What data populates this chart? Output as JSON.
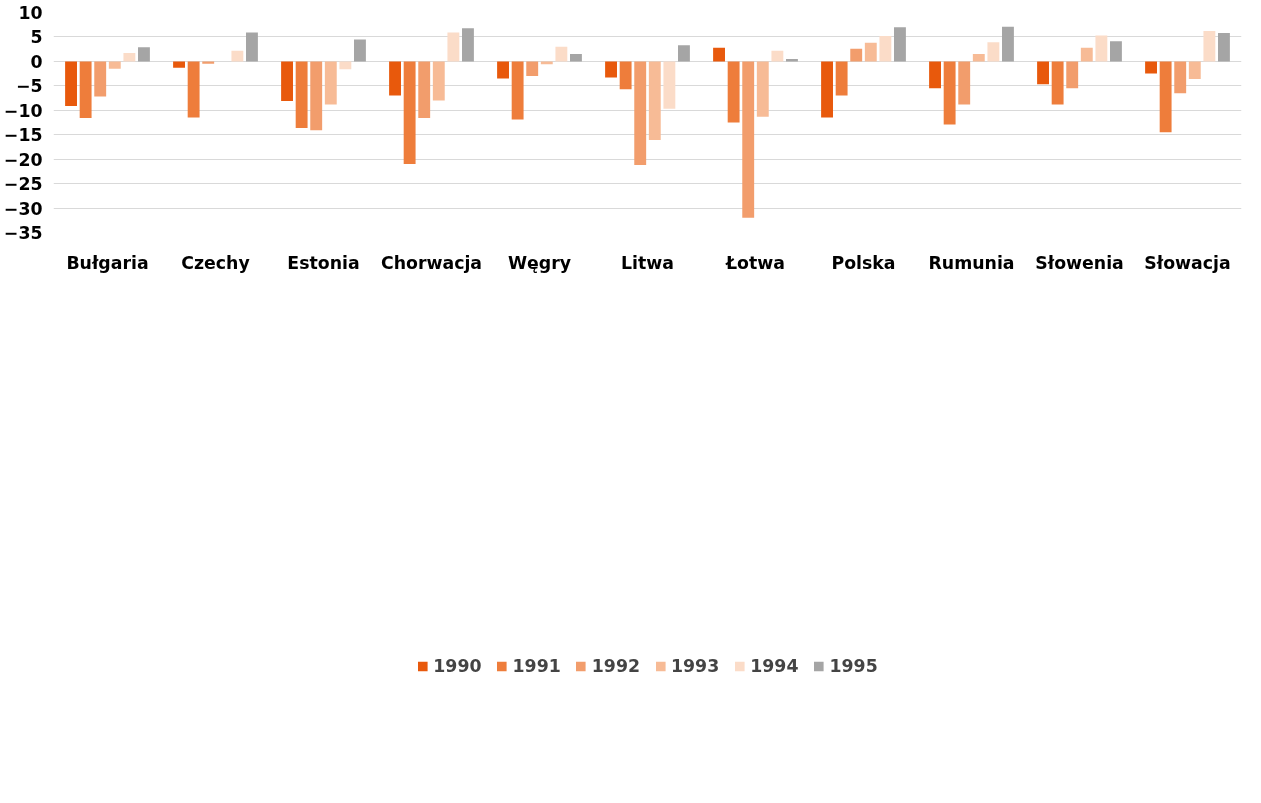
{
  "chart_data": {
    "type": "bar",
    "categories": [
      "Bułgaria",
      "Czechy",
      "Estonia",
      "Chorwacja",
      "Węgry",
      "Litwa",
      "Łotwa",
      "Polska",
      "Rumunia",
      "Słowenia",
      "Słowacja"
    ],
    "series": [
      {
        "name": "1990",
        "color": "#e8590c",
        "values": [
          -9.1,
          -1.3,
          -8.1,
          -7.0,
          -3.5,
          -3.3,
          2.8,
          -11.5,
          -5.5,
          -4.7,
          -2.5
        ]
      },
      {
        "name": "1991",
        "color": "#ee7d3b",
        "values": [
          -11.6,
          -11.5,
          -13.6,
          -21.0,
          -11.9,
          -5.7,
          -12.5,
          -7.0,
          -12.9,
          -8.8,
          -14.5
        ]
      },
      {
        "name": "1992",
        "color": "#f29d6c",
        "values": [
          -7.2,
          -0.5,
          -14.1,
          -11.6,
          -3.0,
          -21.2,
          -32.0,
          2.6,
          -8.8,
          -5.5,
          -6.5
        ]
      },
      {
        "name": "1993",
        "color": "#f7bb96",
        "values": [
          -1.5,
          0,
          -8.8,
          -8.0,
          -0.6,
          -16.1,
          -11.3,
          3.8,
          1.5,
          2.8,
          -3.6
        ]
      },
      {
        "name": "1994",
        "color": "#fbdcc8",
        "values": [
          1.7,
          2.2,
          -1.6,
          5.9,
          3.0,
          -9.7,
          2.2,
          5.2,
          3.9,
          5.3,
          6.2
        ]
      },
      {
        "name": "1995",
        "color": "#a5a5a5",
        "values": [
          2.9,
          5.9,
          4.5,
          6.8,
          1.5,
          3.3,
          0.5,
          7.0,
          7.1,
          4.1,
          5.8
        ]
      }
    ],
    "ylim": [
      -35,
      10
    ],
    "yticks": [
      -35,
      -30,
      -25,
      -20,
      -15,
      -10,
      -5,
      0,
      5,
      10
    ],
    "grid": "y",
    "legend": "bottom"
  }
}
